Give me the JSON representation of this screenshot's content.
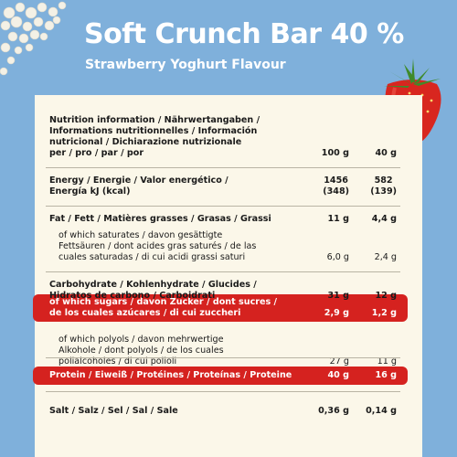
{
  "header": {
    "title": "Soft Crunch Bar 40 %",
    "subtitle": "Strawberry Yoghurt Flavour"
  },
  "colors": {
    "background": "#7fb0db",
    "card": "#fbf7e9",
    "highlight": "#d5221f",
    "text": "#1a1a1a"
  },
  "illustrations": [
    "yoghurt-crisps-icon",
    "strawberry-icon"
  ],
  "table": {
    "heading": [
      "Nutrition information / Nährwertangaben /",
      "Informations nutritionnelles / Información",
      "nutricional / Dichiarazione nutrizionale",
      "per / pro / par / por"
    ],
    "col1": "100 g",
    "col2": "40 g",
    "energy": {
      "label": [
        "Energy / Energie / Valor energético /",
        "Energía kJ (kcal)"
      ],
      "v1": [
        "1456",
        "(348)"
      ],
      "v2": [
        "582",
        "(139)"
      ]
    },
    "fat": {
      "label": "Fat / Fett / Matières grasses / Grasas / Grassi",
      "v1": "11 g",
      "v2": "4,4 g"
    },
    "saturates": {
      "label": [
        "of which saturates / davon gesättigte",
        "Fettsäuren / dont acides gras saturés / de las",
        "cuales saturadas / di cui acidi grassi saturi"
      ],
      "v1": "6,0 g",
      "v2": "2,4 g"
    },
    "carbs": {
      "label": [
        "Carbohydrate / Kohlenhydrate / Glucides /",
        "Hidratos de carbono / Carboidrati"
      ],
      "v1": "31 g",
      "v2": "12 g"
    },
    "sugars": {
      "label": [
        "of which sugars / davon Zucker / dont sucres /",
        "de los cuales azúcares / di cui zuccheri"
      ],
      "v1": "2,9 g",
      "v2": "1,2 g"
    },
    "polyols": {
      "label": [
        "of which polyols / davon mehrwertige",
        "Alkohole / dont polyols / de los cuales",
        "polialcoholes / di cui polioli"
      ],
      "v1": "27 g",
      "v2": "11 g"
    },
    "protein": {
      "label": "Protein / Eiweiß / Protéines / Proteínas / Proteine",
      "v1": "40 g",
      "v2": "16 g"
    },
    "salt": {
      "label": "Salt / Salz / Sel / Sal / Sale",
      "v1": "0,36 g",
      "v2": "0,14 g"
    }
  }
}
